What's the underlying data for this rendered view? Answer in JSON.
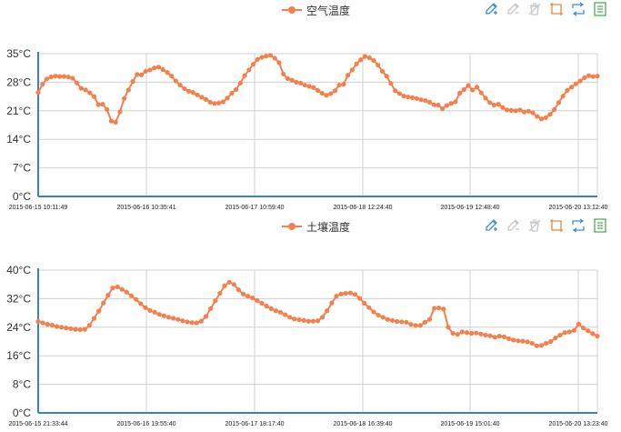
{
  "toolbox": {
    "icons": [
      "edit-pen-icon",
      "edit-pen-disabled-icon",
      "clear-disabled-icon",
      "crop-icon",
      "refresh-icon",
      "data-view-icon"
    ]
  },
  "colors": {
    "series": "#f4814d",
    "axis": "#3b7fc4",
    "grid": "#d0d0d0",
    "tool_blue": "#3b8de0",
    "tool_orange": "#e8893a",
    "tool_green": "#4caf50"
  },
  "chart_data": [
    {
      "type": "line",
      "legend": "空气温度",
      "ylim": [
        0,
        35
      ],
      "yticks": [
        "0°C",
        "7°C",
        "14°C",
        "21°C",
        "28°C",
        "35°C"
      ],
      "xtick_labels": [
        "2015-06-15 10:11:49",
        "2015-06-16 10:35:41",
        "2015-06-17 10:59:40",
        "2015-06-18 12:24:40",
        "2015-06-19 12:48:40",
        "2015-06-20 13:12:40"
      ],
      "values": [
        25.5,
        27.5,
        28.8,
        29.3,
        29.5,
        29.4,
        29.4,
        29.3,
        29.0,
        27.8,
        26.5,
        26.1,
        25.4,
        24.5,
        22.5,
        22.6,
        21.3,
        18.5,
        18.2,
        20.7,
        24.0,
        26.1,
        28.2,
        29.9,
        29.8,
        30.7,
        31.0,
        31.5,
        31.7,
        31.1,
        30.4,
        29.5,
        28.3,
        27.3,
        26.4,
        25.8,
        25.5,
        24.9,
        24.3,
        23.8,
        23.1,
        22.8,
        22.9,
        23.2,
        24.1,
        25.3,
        26.2,
        27.8,
        29.6,
        31.0,
        32.4,
        33.6,
        34.1,
        34.4,
        34.6,
        33.9,
        32.8,
        30.0,
        28.9,
        28.5,
        28.0,
        27.8,
        27.3,
        27.0,
        26.7,
        26.0,
        25.3,
        24.8,
        25.2,
        25.9,
        27.3,
        27.5,
        29.7,
        31.0,
        32.5,
        33.5,
        34.3,
        34.0,
        33.3,
        32.2,
        30.7,
        29.5,
        27.7,
        25.9,
        25.2,
        24.6,
        24.4,
        24.2,
        24.0,
        23.7,
        23.5,
        23.1,
        22.5,
        22.4,
        21.5,
        22.3,
        22.8,
        23.2,
        25.3,
        26.2,
        27.2,
        26.1,
        26.8,
        25.4,
        24.1,
        23.0,
        22.4,
        22.6,
        21.8,
        21.2,
        21.1,
        21.0,
        21.2,
        20.7,
        20.9,
        20.5,
        19.6,
        19.0,
        19.3,
        20.1,
        21.3,
        23.0,
        24.6,
        26.0,
        26.8,
        27.6,
        28.3,
        29.1,
        29.6,
        29.4,
        29.5
      ]
    },
    {
      "type": "line",
      "legend": "土壤温度",
      "ylim": [
        0,
        40
      ],
      "yticks": [
        "0°C",
        "8°C",
        "16°C",
        "24°C",
        "32°C",
        "40°C"
      ],
      "xtick_labels": [
        "2015-06-15 21:33:44",
        "2015-06-16 19:55:40",
        "2015-06-17 18:17:40",
        "2015-06-18 16:39:40",
        "2015-06-19 15:01:40",
        "2015-06-20 13:23:40"
      ],
      "values": [
        25.6,
        25.2,
        24.8,
        24.6,
        24.2,
        24.0,
        23.8,
        23.6,
        23.4,
        23.3,
        23.4,
        24.5,
        26.5,
        28.5,
        30.8,
        33.0,
        35.0,
        35.3,
        34.6,
        33.8,
        32.8,
        31.8,
        30.6,
        29.5,
        28.7,
        28.2,
        27.6,
        27.2,
        26.8,
        26.5,
        26.2,
        25.8,
        25.5,
        25.3,
        25.2,
        25.7,
        27.0,
        29.2,
        31.4,
        33.5,
        35.6,
        36.6,
        36.0,
        34.5,
        33.3,
        32.7,
        32.2,
        31.5,
        30.7,
        29.9,
        29.2,
        28.6,
        28.2,
        27.5,
        26.8,
        26.3,
        26.1,
        25.9,
        25.7,
        25.7,
        25.8,
        26.8,
        28.6,
        30.8,
        32.7,
        33.3,
        33.5,
        33.6,
        33.2,
        32.1,
        30.7,
        29.5,
        28.3,
        27.4,
        26.8,
        26.2,
        25.9,
        25.6,
        25.5,
        25.4,
        24.8,
        24.5,
        24.5,
        25.4,
        26.2,
        29.3,
        29.4,
        29.1,
        24.0,
        22.3,
        22.0,
        22.7,
        22.5,
        22.3,
        22.4,
        22.1,
        21.8,
        21.6,
        21.2,
        21.5,
        21.3,
        20.8,
        20.4,
        20.2,
        20.1,
        19.9,
        19.5,
        18.8,
        18.9,
        19.5,
        20.0,
        21.0,
        21.8,
        22.5,
        22.7,
        23.1,
        24.9,
        23.8,
        23.0,
        22.2,
        21.5
      ]
    }
  ]
}
